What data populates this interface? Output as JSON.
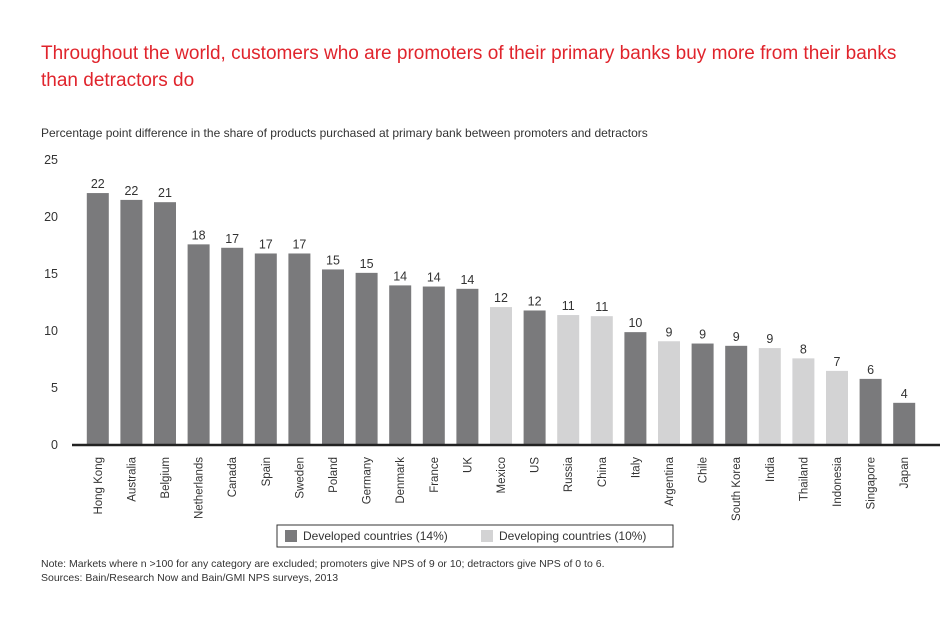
{
  "title": "Throughout the world, customers who are promoters of their primary banks buy more from their banks than detractors do",
  "subtitle": "Percentage point difference in the share of products purchased at primary bank between promoters and detractors",
  "note": "Note: Markets where n >100 for any category are excluded; promoters give NPS of 9 or 10; detractors give NPS of 0 to 6.",
  "sources": "Sources: Bain/Research Now and Bain/GMI NPS surveys, 2013",
  "colors": {
    "developed": "#7a7a7c",
    "developing": "#d3d3d4",
    "title": "#e0242c"
  },
  "chart_data": {
    "type": "bar",
    "title": "Throughout the world, customers who are promoters of their primary banks buy more from their banks than detractors do",
    "ylabel": "Percentage point difference in the share of products purchased at primary bank between promoters and detractors",
    "xlabel": "",
    "ylim": [
      0,
      25
    ],
    "yticks": [
      0,
      5,
      10,
      15,
      20,
      25
    ],
    "grid": false,
    "legend_position": "bottom",
    "legend": [
      {
        "key": "developed",
        "label": "Developed countries (14%)"
      },
      {
        "key": "developing",
        "label": "Developing countries (10%)"
      }
    ],
    "categories": [
      "Hong Kong",
      "Australia",
      "Belgium",
      "Netherlands",
      "Canada",
      "Spain",
      "Sweden",
      "Poland",
      "Germany",
      "Denmark",
      "France",
      "UK",
      "Mexico",
      "US",
      "Russia",
      "China",
      "Italy",
      "Argentina",
      "Chile",
      "South Korea",
      "India",
      "Thailand",
      "Indonesia",
      "Singapore",
      "Japan"
    ],
    "values": [
      22.1,
      21.5,
      21.3,
      17.6,
      17.3,
      16.8,
      16.8,
      15.4,
      15.1,
      14.0,
      13.9,
      13.7,
      12.1,
      11.8,
      11.4,
      11.3,
      9.9,
      9.1,
      8.9,
      8.7,
      8.5,
      7.6,
      6.5,
      5.8,
      3.7
    ],
    "labels": [
      "22",
      "22",
      "21",
      "18",
      "17",
      "17",
      "17",
      "15",
      "15",
      "14",
      "14",
      "14",
      "12",
      "12",
      "11",
      "11",
      "10",
      "9",
      "9",
      "9",
      "9",
      "8",
      "7",
      "6",
      "4"
    ],
    "groups": [
      "developed",
      "developed",
      "developed",
      "developed",
      "developed",
      "developed",
      "developed",
      "developed",
      "developed",
      "developed",
      "developed",
      "developed",
      "developing",
      "developed",
      "developing",
      "developing",
      "developed",
      "developing",
      "developed",
      "developed",
      "developing",
      "developing",
      "developing",
      "developed",
      "developed"
    ]
  }
}
